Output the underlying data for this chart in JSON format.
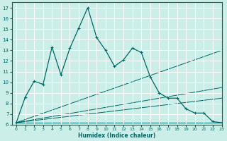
{
  "xlabel": "Humidex (Indice chaleur)",
  "xlim": [
    -0.5,
    23
  ],
  "ylim": [
    6,
    17.5
  ],
  "yticks": [
    6,
    7,
    8,
    9,
    10,
    11,
    12,
    13,
    14,
    15,
    16,
    17
  ],
  "xticks": [
    0,
    1,
    2,
    3,
    4,
    5,
    6,
    7,
    8,
    9,
    10,
    11,
    12,
    13,
    14,
    15,
    16,
    17,
    18,
    19,
    20,
    21,
    22,
    23
  ],
  "bg_color": "#cceee8",
  "line_color": "#006666",
  "grid_color": "#ffffff",
  "series": [
    [
      0,
      6.2
    ],
    [
      1,
      8.6
    ],
    [
      2,
      10.1
    ],
    [
      3,
      9.8
    ],
    [
      4,
      13.3
    ],
    [
      5,
      10.7
    ],
    [
      6,
      13.2
    ],
    [
      7,
      15.1
    ],
    [
      8,
      17.0
    ],
    [
      9,
      14.2
    ],
    [
      10,
      13.0
    ],
    [
      11,
      11.5
    ],
    [
      12,
      12.1
    ],
    [
      13,
      13.2
    ],
    [
      14,
      12.8
    ],
    [
      15,
      10.5
    ],
    [
      16,
      9.0
    ],
    [
      17,
      8.5
    ],
    [
      18,
      8.5
    ],
    [
      19,
      7.5
    ],
    [
      20,
      7.1
    ],
    [
      21,
      7.1
    ],
    [
      22,
      6.3
    ],
    [
      23,
      6.2
    ]
  ],
  "line2": [
    [
      0,
      6.2
    ],
    [
      23,
      13.0
    ]
  ],
  "line3": [
    [
      0,
      6.2
    ],
    [
      23,
      9.5
    ]
  ],
  "line4": [
    [
      0,
      6.2
    ],
    [
      23,
      8.5
    ]
  ],
  "line5": [
    [
      0,
      6.2
    ],
    [
      23,
      6.2
    ]
  ]
}
